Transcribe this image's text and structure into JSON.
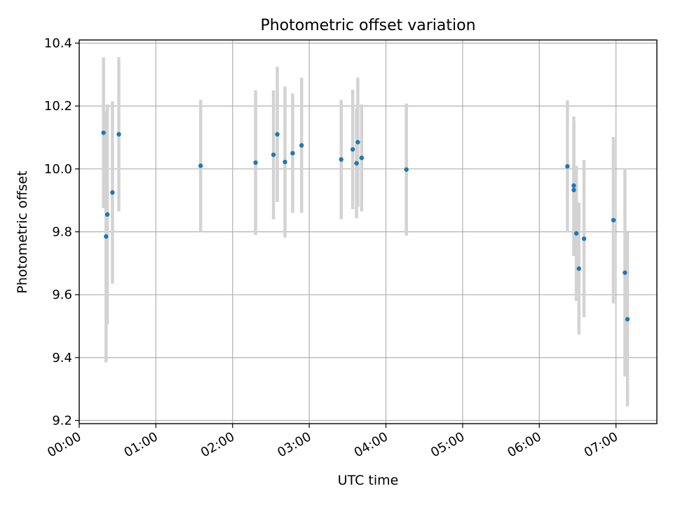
{
  "chart_data": {
    "type": "scatter",
    "title": "Photometric offset variation",
    "xlabel": "UTC time",
    "ylabel": "Photometric offset",
    "x_axis_type": "time",
    "xlim": [
      "00:00",
      "07:32"
    ],
    "ylim": [
      9.19,
      10.41
    ],
    "x_ticks": [
      "00:00",
      "01:00",
      "02:00",
      "03:00",
      "04:00",
      "05:00",
      "06:00",
      "07:00"
    ],
    "y_ticks": [
      9.2,
      9.4,
      9.6,
      9.8,
      10.0,
      10.2,
      10.4
    ],
    "grid": true,
    "legend": "none",
    "marker_color": "#1f77b4",
    "errorbar_color": "#d3d3d3",
    "points": [
      {
        "x": "00:19",
        "y": 10.115,
        "err": 0.24
      },
      {
        "x": "00:21",
        "y": 9.785,
        "err": 0.4
      },
      {
        "x": "00:22",
        "y": 9.855,
        "err": 0.35
      },
      {
        "x": "00:26",
        "y": 9.925,
        "err": 0.29
      },
      {
        "x": "00:31",
        "y": 10.11,
        "err": 0.245
      },
      {
        "x": "01:35",
        "y": 10.01,
        "err": 0.21
      },
      {
        "x": "02:18",
        "y": 10.02,
        "err": 0.23
      },
      {
        "x": "02:32",
        "y": 10.045,
        "err": 0.205
      },
      {
        "x": "02:35",
        "y": 10.11,
        "err": 0.215
      },
      {
        "x": "02:41",
        "y": 10.022,
        "err": 0.24
      },
      {
        "x": "02:47",
        "y": 10.05,
        "err": 0.19
      },
      {
        "x": "02:54",
        "y": 10.075,
        "err": 0.215
      },
      {
        "x": "03:25",
        "y": 10.03,
        "err": 0.19
      },
      {
        "x": "03:34",
        "y": 10.062,
        "err": 0.19
      },
      {
        "x": "03:37",
        "y": 10.018,
        "err": 0.175
      },
      {
        "x": "03:38",
        "y": 10.085,
        "err": 0.205
      },
      {
        "x": "03:41",
        "y": 10.035,
        "err": 0.17
      },
      {
        "x": "04:16",
        "y": 9.998,
        "err": 0.21
      },
      {
        "x": "06:22",
        "y": 10.008,
        "err": 0.21
      },
      {
        "x": "06:27",
        "y": 9.933,
        "err": 0.21
      },
      {
        "x": "06:27",
        "y": 9.947,
        "err": 0.22
      },
      {
        "x": "06:29",
        "y": 9.795,
        "err": 0.215
      },
      {
        "x": "06:31",
        "y": 9.683,
        "err": 0.21
      },
      {
        "x": "06:35",
        "y": 9.778,
        "err": 0.25
      },
      {
        "x": "06:58",
        "y": 9.837,
        "err": 0.265
      },
      {
        "x": "07:07",
        "y": 9.67,
        "err": 0.33
      },
      {
        "x": "07:09",
        "y": 9.522,
        "err": 0.277
      }
    ]
  }
}
